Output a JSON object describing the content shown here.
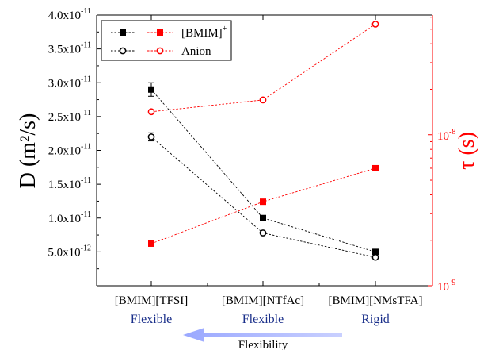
{
  "chart_data": {
    "type": "scatter",
    "categories": [
      "[BMIM][TFSI]",
      "[BMIM][NTfAc]",
      "[BMIM][NMsTFA]"
    ],
    "category_sublabels": [
      "Flexible",
      "Flexible",
      "Rigid"
    ],
    "arrow_label": "Flexibility",
    "left_axis": {
      "label": "D (m²/s)",
      "ylim": [
        0,
        4e-11
      ],
      "ticks": [
        {
          "value": 5e-12,
          "mant": "5.0x10",
          "exp": "-12"
        },
        {
          "value": 1e-11,
          "mant": "1.0x10",
          "exp": "-11"
        },
        {
          "value": 1.5e-11,
          "mant": "1.5x10",
          "exp": "-11"
        },
        {
          "value": 2e-11,
          "mant": "2.0x10",
          "exp": "-11"
        },
        {
          "value": 2.5e-11,
          "mant": "2.5x10",
          "exp": "-11"
        },
        {
          "value": 3e-11,
          "mant": "3.0x10",
          "exp": "-11"
        },
        {
          "value": 3.5e-11,
          "mant": "3.5x10",
          "exp": "-11"
        },
        {
          "value": 4e-11,
          "mant": "4.0x10",
          "exp": "-11"
        }
      ]
    },
    "right_axis": {
      "label": "τ (s)",
      "scale": "log",
      "ylim": [
        1e-09,
        6.2e-08
      ],
      "ticks": [
        {
          "value": 1e-09,
          "mant": "10",
          "exp": "-9"
        },
        {
          "value": 1e-08,
          "mant": "10",
          "exp": "-8"
        }
      ]
    },
    "series": [
      {
        "name": "[BMIM]",
        "name_sup": "+",
        "axis": "left",
        "marker": "square-filled",
        "color": "#000000",
        "values": [
          2.9e-11,
          1e-11,
          5e-12
        ],
        "errors": [
          1e-12,
          0,
          0
        ]
      },
      {
        "name": "",
        "axis": "left",
        "marker": "circle-open",
        "color": "#000000",
        "values": [
          2.2e-11,
          7.8e-12,
          4.2e-12
        ],
        "errors": [
          6e-13,
          0,
          0
        ]
      },
      {
        "name": "",
        "axis": "right",
        "marker": "square-filled",
        "color": "#ff0000",
        "values": [
          1.9e-09,
          3.6e-09,
          6e-09
        ]
      },
      {
        "name": "Anion",
        "axis": "right",
        "marker": "circle-open",
        "color": "#ff0000",
        "values": [
          1.42e-08,
          1.7e-08,
          5.4e-08
        ]
      }
    ],
    "legend": {
      "position": "top-left"
    },
    "grid": false
  }
}
